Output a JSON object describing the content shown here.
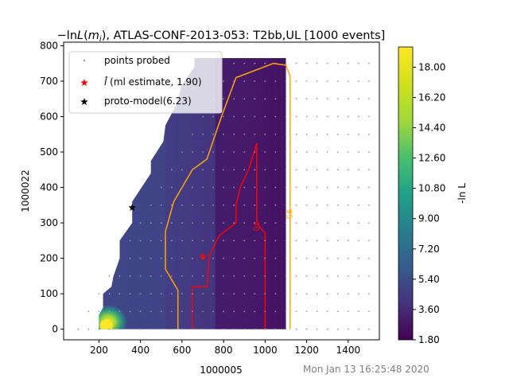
{
  "chart_data": {
    "type": "heatmap",
    "title": "−lnL(mᵢ), ATLAS-CONF-2013-053: T2bb,UL [1000 events]",
    "title_parts": {
      "pre": "−ln",
      "L": "L",
      "paren_open": "(",
      "m": "m",
      "sub": "i",
      "rest": "), ATLAS-CONF-2013-053: T2bb,UL [1000 events]"
    },
    "xlabel": "1000005",
    "ylabel": "1000022",
    "xlim": [
      30,
      1550
    ],
    "ylim": [
      -30,
      810
    ],
    "x_ticks": [
      200,
      400,
      600,
      800,
      1000,
      1200,
      1400
    ],
    "y_ticks": [
      0,
      100,
      200,
      300,
      400,
      500,
      600,
      700,
      800
    ],
    "colorbar": {
      "label": "-ln L",
      "min": 1.8,
      "max": 19.2,
      "ticks": [
        "1.80",
        "3.60",
        "5.40",
        "7.20",
        "9.00",
        "10.80",
        "12.60",
        "14.40",
        "16.20",
        "18.00"
      ],
      "tick_values": [
        1.8,
        3.6,
        5.4,
        7.2,
        9.0,
        10.8,
        12.6,
        14.4,
        16.2,
        18.0
      ]
    },
    "legend": {
      "placement": "upper-left",
      "entries": [
        {
          "label": "points probed",
          "marker": "dot",
          "color": "#999999"
        },
        {
          "label_pre": "l̂",
          "label_rest": " (ml estimate, 1.90)",
          "marker": "star",
          "color": "#ff0000"
        },
        {
          "label": "proto-model(6.23)",
          "marker": "star",
          "color": "#000000"
        }
      ]
    },
    "ml_estimate": {
      "x": 700,
      "y": 205,
      "value": 1.9
    },
    "proto_model": {
      "x": 360,
      "y": 343,
      "value": 6.23
    },
    "contours": [
      {
        "label": "50",
        "color": "#ff0000",
        "points": [
          [
            650,
            0
          ],
          [
            650,
            120
          ],
          [
            720,
            120
          ],
          [
            730,
            205
          ],
          [
            780,
            265
          ],
          [
            860,
            300
          ],
          [
            860,
            350
          ],
          [
            880,
            400
          ],
          [
            920,
            450
          ],
          [
            960,
            525
          ],
          [
            960,
            300
          ],
          [
            1000,
            270
          ],
          [
            1000,
            0
          ]
        ]
      },
      {
        "label": "95",
        "color": "#ffa500",
        "points": [
          [
            580,
            0
          ],
          [
            580,
            110
          ],
          [
            520,
            170
          ],
          [
            520,
            275
          ],
          [
            560,
            360
          ],
          [
            650,
            450
          ],
          [
            720,
            480
          ],
          [
            790,
            600
          ],
          [
            860,
            710
          ],
          [
            1040,
            750
          ],
          [
            1100,
            745
          ],
          [
            1120,
            715
          ],
          [
            1120,
            0
          ]
        ]
      }
    ],
    "timestamp": "Mon Jan 13 16:25:48 2020",
    "grid": false
  }
}
